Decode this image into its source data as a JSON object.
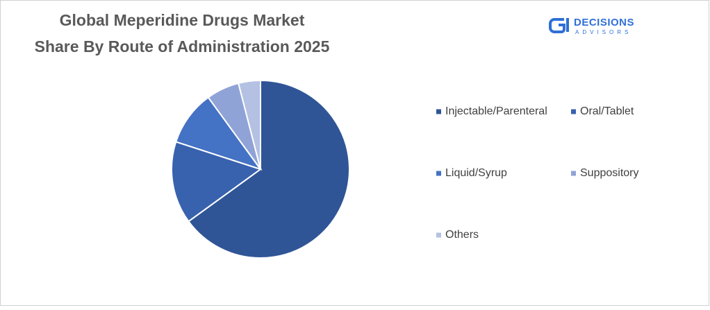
{
  "chart_data": {
    "type": "pie",
    "title": [
      "Global Meperidine Drugs Market",
      "Share By Route of Administration 2025"
    ],
    "categories": [
      "Injectable/Parenteral",
      "Oral/Tablet",
      "Liquid/Syrup",
      "Suppository",
      "Others"
    ],
    "values": [
      65,
      15,
      10,
      6,
      4
    ],
    "colors": [
      "#2f5597",
      "#3862ae",
      "#4472c4",
      "#8fa3d6",
      "#b4c1e3"
    ],
    "legend": "right"
  },
  "logo": {
    "name": "DECISIONS",
    "tagline": "ADVISORS"
  }
}
